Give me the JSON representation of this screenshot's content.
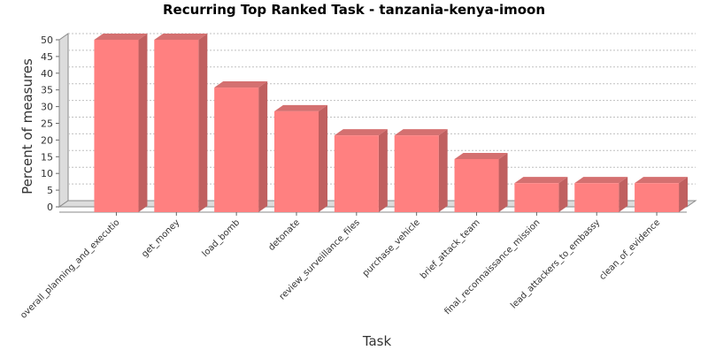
{
  "chart_data": {
    "type": "bar",
    "title": "Recurring Top Ranked Task - tanzania-kenya-imoon",
    "xlabel": "Task",
    "ylabel": "Percent of measures",
    "categories": [
      "overall_planning_and_executio",
      "get_money",
      "load_bomb",
      "detonate",
      "review_surveillance_files",
      "purchase_vehicle",
      "brief_attack_team",
      "final_reconnaissance_mission",
      "lead_attackers_to_embassy",
      "clean_of_evidence"
    ],
    "values": [
      50,
      50,
      35.7,
      28.6,
      21.4,
      21.4,
      14.3,
      7.1,
      7.1,
      7.1
    ],
    "ylim": [
      0,
      50
    ],
    "yticks": [
      0,
      5,
      10,
      15,
      20,
      25,
      30,
      35,
      40,
      45,
      50
    ],
    "grid": true,
    "bar_color": "#ff8080",
    "bar_side_color": "#c06060",
    "bar_top_color": "#d47070"
  }
}
